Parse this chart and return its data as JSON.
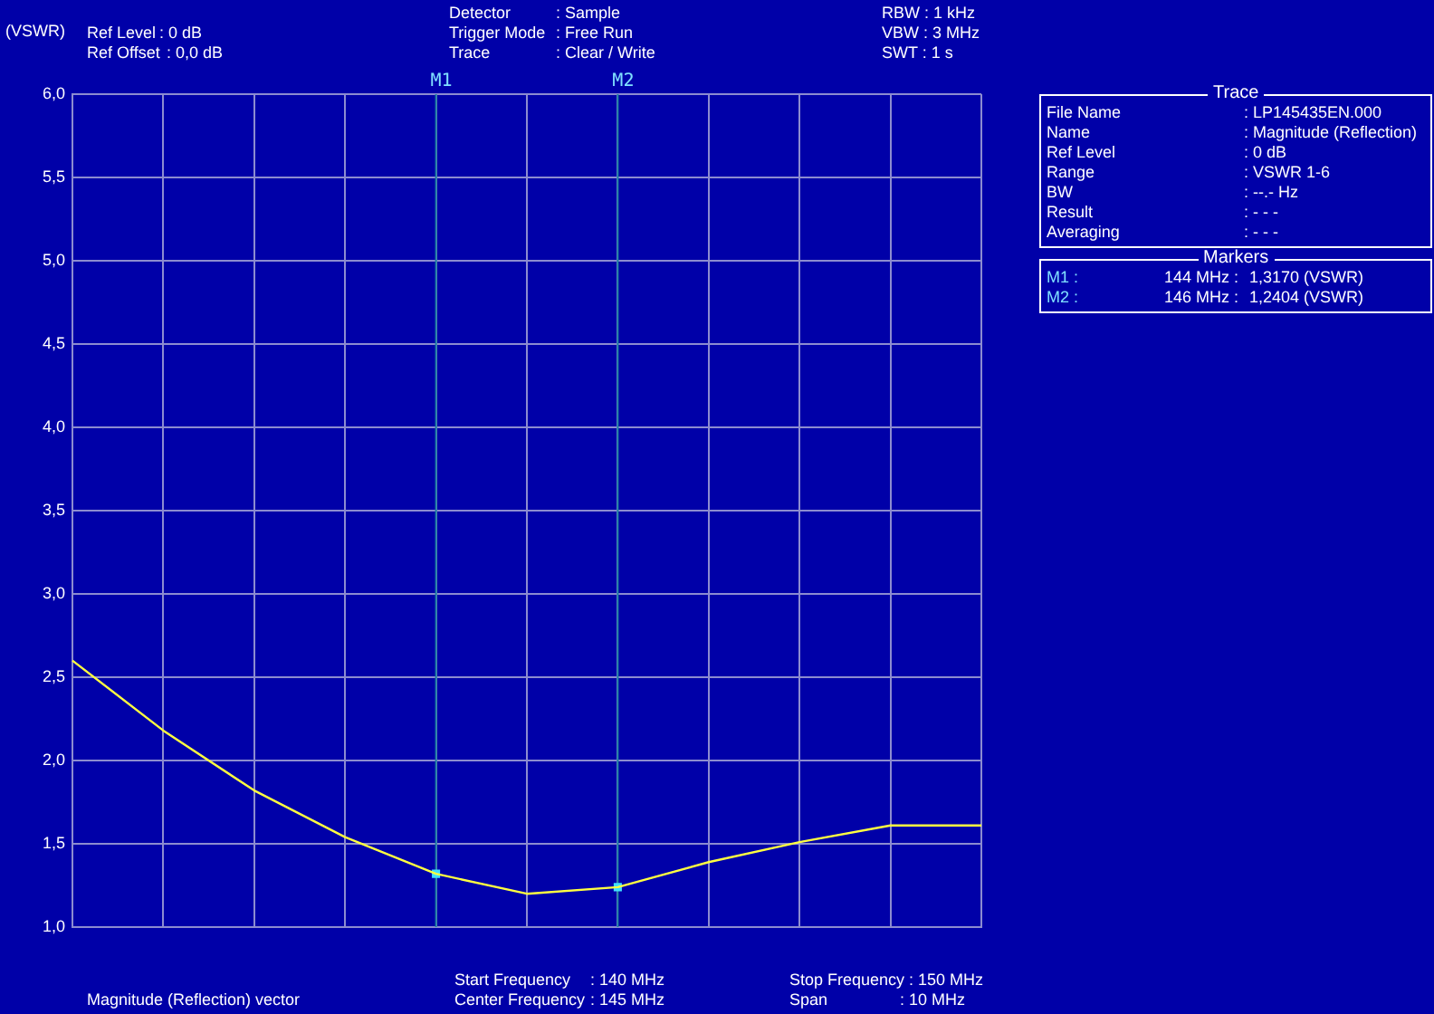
{
  "chart_data": {
    "type": "line",
    "ylabel": "(VSWR)",
    "categories": [
      null,
      null,
      null,
      null,
      null,
      null,
      null,
      null,
      null,
      null,
      null
    ],
    "series": [
      {
        "color": "#ffff40",
        "values": [
          2.6,
          2.18,
          1.82,
          1.54,
          1.32,
          1.2,
          1.24,
          1.39,
          1.51,
          1.61,
          1.61
        ]
      },
      {
        "type": "scatter",
        "color": "#40e0ff",
        "values": [
          null,
          null,
          null,
          null,
          1.32,
          null,
          1.24,
          null,
          null,
          null,
          null
        ]
      }
    ],
    "ylim": [
      1,
      6
    ],
    "yticks": [
      {
        "value": 1,
        "label": "1,0"
      },
      {
        "value": 1.5,
        "label": "1,5"
      },
      {
        "value": 2,
        "label": "2,0"
      },
      {
        "value": 2.5,
        "label": "2,5"
      },
      {
        "value": 3,
        "label": "3,0"
      },
      {
        "value": 3.5,
        "label": "3,5"
      },
      {
        "value": 4,
        "label": "4,0"
      },
      {
        "value": 4.5,
        "label": "4,5"
      },
      {
        "value": 5,
        "label": "5,0"
      },
      {
        "value": 5.5,
        "label": "5,5"
      },
      {
        "value": 6,
        "label": "6,0"
      }
    ],
    "tick_labels": "y",
    "grid": true,
    "legend": false,
    "line_style": "solid",
    "annotations": [
      "Ref Level",
      ": 0 dB",
      "Ref Offset",
      ": 0,0 dB",
      "Detector",
      ": Sample",
      "Trigger Mode",
      ": Free Run",
      "Trace",
      ": Clear / Write",
      "RBW : 1 kHz",
      "VBW : 3 MHz",
      "SWT : 1 s",
      "Trace",
      "File Name",
      "Name",
      "Ref Level",
      "Range",
      "BW",
      "Result",
      "Averaging",
      ": LP145435EN.000",
      ": Magnitude (Reflection)",
      ": 0 dB",
      ": VSWR 1-6",
      ": --.- Hz",
      ": - - -",
      ": - - -",
      "Markers",
      "M1 :",
      "144 MHz :",
      "1,3170 (VSWR)",
      "M2 :",
      "146 MHz :",
      "1,2404 (VSWR)",
      "Start Frequency",
      ": 140 MHz",
      "Center Frequency",
      ": 145 MHz",
      "Stop Frequency : 150 MHz",
      "Span",
      ": 10 MHz",
      "Magnitude (Reflection) vector",
      "M1",
      "M2"
    ]
  }
}
